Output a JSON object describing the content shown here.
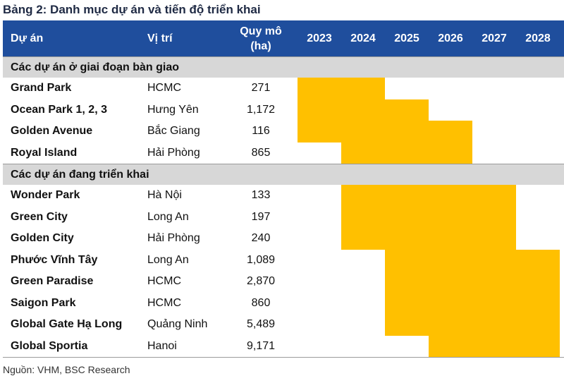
{
  "title": "Bảng 2: Danh mục dự án và tiến độ triển khai",
  "header": {
    "project": "Dự án",
    "location": "Vị trí",
    "area_line1": "Quy mô",
    "area_line2": "(ha)",
    "years": [
      "2023",
      "2024",
      "2025",
      "2026",
      "2027",
      "2028"
    ]
  },
  "sections": [
    {
      "label": "Các dự án ở giai đoạn bàn giao",
      "rows": [
        {
          "name": "Grand Park",
          "location": "HCMC",
          "area": "271",
          "start": "2023",
          "end": "2024"
        },
        {
          "name": "Ocean Park 1, 2, 3",
          "location": "Hưng Yên",
          "area": "1,172",
          "start": "2023",
          "end": "2025"
        },
        {
          "name": "Golden Avenue",
          "location": "Bắc Giang",
          "area": "116",
          "start": "2023",
          "end": "2026"
        },
        {
          "name": "Royal Island",
          "location": "Hải Phòng",
          "area": "865",
          "start": "2024",
          "end": "2026"
        }
      ]
    },
    {
      "label": "Các dự án đang triển khai",
      "rows": [
        {
          "name": "Wonder Park",
          "location": "Hà Nội",
          "area": "133",
          "start": "2024",
          "end": "2027"
        },
        {
          "name": "Green City",
          "location": "Long An",
          "area": "197",
          "start": "2024",
          "end": "2027"
        },
        {
          "name": "Golden City",
          "location": "Hải Phòng",
          "area": "240",
          "start": "2024",
          "end": "2027"
        },
        {
          "name": "Phước Vĩnh Tây",
          "location": "Long An",
          "area": "1,089",
          "start": "2025",
          "end": "2028"
        },
        {
          "name": "Green Paradise",
          "location": "HCMC",
          "area": "2,870",
          "start": "2025",
          "end": "2028"
        },
        {
          "name": "Saigon Park",
          "location": "HCMC",
          "area": "860",
          "start": "2025",
          "end": "2028"
        },
        {
          "name": "Global Gate Hạ Long",
          "location": "Quảng Ninh",
          "area": "5,489",
          "start": "2025",
          "end": "2028"
        },
        {
          "name": "Global Sportia",
          "location": "Hanoi",
          "area": "9,171",
          "start": "2026",
          "end": "2028"
        }
      ]
    }
  ],
  "source": "Nguồn: VHM, BSC Research",
  "colors": {
    "header_bg": "#1f4e9d",
    "section_bg": "#d7d7d7",
    "bar": "#ffc000"
  }
}
